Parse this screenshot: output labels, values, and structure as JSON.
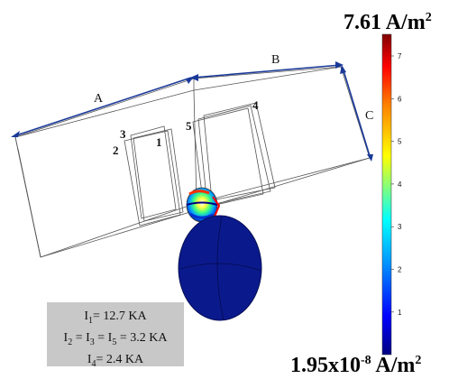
{
  "colorbar": {
    "max_value": "7.61",
    "min_mantissa": "1.95x10",
    "min_exponent": "-8",
    "unit": "A/m",
    "unit_power": "2",
    "ticks": [
      "7",
      "6",
      "5",
      "4",
      "3",
      "2",
      "1"
    ],
    "colors": [
      "#000080",
      "#0000ff",
      "#00a0ff",
      "#00ffff",
      "#80ff80",
      "#ffff00",
      "#ff8000",
      "#ff0000",
      "#800000"
    ]
  },
  "dimension_labels": {
    "a": "A",
    "b": "B",
    "c": "C"
  },
  "conductor_labels": [
    "1",
    "2",
    "3",
    "4",
    "5"
  ],
  "currents": [
    {
      "name": "I",
      "sub": "1",
      "value": "= 12.7 KA"
    },
    {
      "names": [
        "I",
        "I",
        "I"
      ],
      "subs": [
        "2",
        "3",
        "5"
      ],
      "value": "= 3.2 KA"
    },
    {
      "name": "I",
      "sub": "4",
      "value": "= 2.4 KA"
    }
  ],
  "colors": {
    "sphere_body": "#0a1a8c",
    "dimension_arrows": "#1a3a9a"
  }
}
